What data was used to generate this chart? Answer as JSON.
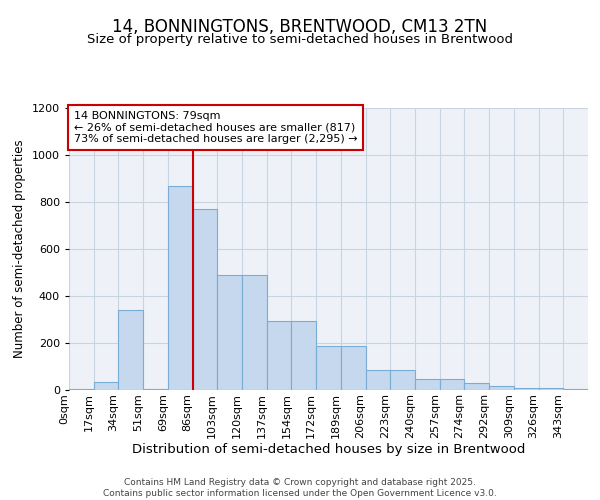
{
  "title": "14, BONNINGTONS, BRENTWOOD, CM13 2TN",
  "subtitle": "Size of property relative to semi-detached houses in Brentwood",
  "xlabel": "Distribution of semi-detached houses by size in Brentwood",
  "ylabel": "Number of semi-detached properties",
  "bin_labels": [
    "0sqm",
    "17sqm",
    "34sqm",
    "51sqm",
    "69sqm",
    "86sqm",
    "103sqm",
    "120sqm",
    "137sqm",
    "154sqm",
    "172sqm",
    "189sqm",
    "206sqm",
    "223sqm",
    "240sqm",
    "257sqm",
    "274sqm",
    "292sqm",
    "309sqm",
    "326sqm",
    "343sqm"
  ],
  "bar_heights": [
    5,
    35,
    340,
    5,
    865,
    770,
    490,
    490,
    295,
    295,
    185,
    185,
    85,
    85,
    48,
    48,
    30,
    18,
    10,
    10,
    5
  ],
  "bar_color": "#c5d8ee",
  "bar_edge_color": "#7aadd4",
  "property_value_bin": 4,
  "annotation_text": "14 BONNINGTONS: 79sqm\n← 26% of semi-detached houses are smaller (817)\n73% of semi-detached houses are larger (2,295) →",
  "annotation_box_color": "#ffffff",
  "annotation_box_edge": "#cc0000",
  "vline_color": "#cc0000",
  "ylim": [
    0,
    1200
  ],
  "yticks": [
    0,
    200,
    400,
    600,
    800,
    1000,
    1200
  ],
  "grid_color": "#c8d4e0",
  "background_color": "#eef2f8",
  "footer_text": "Contains HM Land Registry data © Crown copyright and database right 2025.\nContains public sector information licensed under the Open Government Licence v3.0.",
  "title_fontsize": 12,
  "subtitle_fontsize": 9.5,
  "xlabel_fontsize": 9.5,
  "ylabel_fontsize": 8.5,
  "tick_fontsize": 8,
  "annotation_fontsize": 8,
  "footer_fontsize": 6.5
}
